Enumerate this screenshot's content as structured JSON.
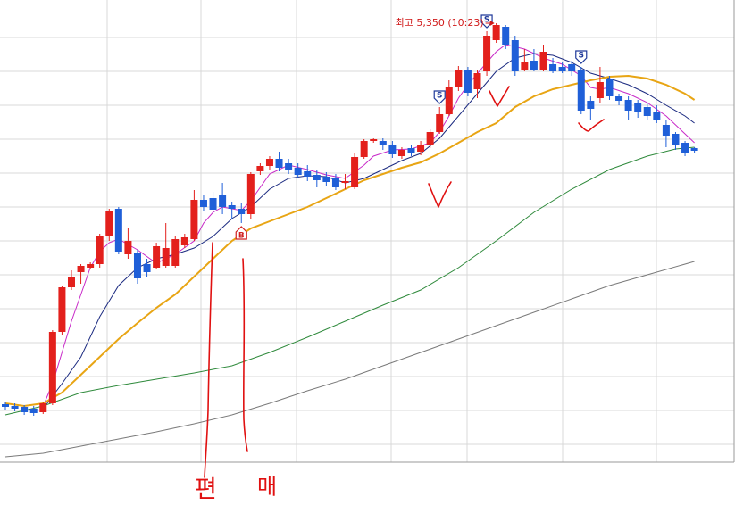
{
  "chart_data": {
    "type": "candlestick",
    "ylim": [
      4858,
      5376
    ],
    "up_color": "#e3201c",
    "down_color": "#1f5fd8",
    "open": [
      4923,
      4921,
      4920,
      4918,
      4914,
      4924,
      5004,
      5054,
      5071,
      5076,
      5080,
      5111,
      5142,
      5091,
      5093,
      5080,
      5076,
      5078,
      5078,
      5101,
      5108,
      5152,
      5154,
      5158,
      5146,
      5142,
      5136,
      5184,
      5190,
      5198,
      5193,
      5188,
      5184,
      5180,
      5178,
      5176,
      5171,
      5166,
      5200,
      5218,
      5218,
      5213,
      5201,
      5210,
      5206,
      5213,
      5228,
      5248,
      5278,
      5298,
      5276,
      5296,
      5331,
      5346,
      5331,
      5298,
      5308,
      5298,
      5304,
      5301,
      5304,
      5298,
      5263,
      5266,
      5288,
      5268,
      5264,
      5261,
      5256,
      5251,
      5236,
      5226,
      5216,
      5210
    ],
    "high": [
      4926,
      4924,
      4922,
      4921,
      4926,
      5006,
      5056,
      5073,
      5080,
      5082,
      5114,
      5142,
      5144,
      5121,
      5096,
      5086,
      5104,
      5126,
      5111,
      5114,
      5163,
      5158,
      5161,
      5171,
      5150,
      5148,
      5183,
      5193,
      5201,
      5206,
      5198,
      5193,
      5191,
      5186,
      5183,
      5181,
      5181,
      5204,
      5220,
      5221,
      5221,
      5218,
      5211,
      5213,
      5218,
      5231,
      5256,
      5286,
      5302,
      5301,
      5298,
      5341,
      5350,
      5348,
      5336,
      5321,
      5321,
      5326,
      5311,
      5306,
      5308,
      5301,
      5268,
      5301,
      5291,
      5271,
      5268,
      5264,
      5261,
      5258,
      5241,
      5228,
      5218,
      5211
    ],
    "low": [
      4916,
      4915,
      4911,
      4910,
      4912,
      4922,
      5001,
      5051,
      5058,
      5074,
      5076,
      5106,
      5091,
      5086,
      5058,
      5066,
      5074,
      5076,
      5076,
      5098,
      5106,
      5140,
      5138,
      5136,
      5131,
      5126,
      5131,
      5180,
      5186,
      5184,
      5181,
      5176,
      5173,
      5166,
      5168,
      5163,
      5164,
      5164,
      5198,
      5216,
      5208,
      5199,
      5198,
      5201,
      5202,
      5210,
      5226,
      5246,
      5274,
      5268,
      5266,
      5291,
      5328,
      5321,
      5291,
      5296,
      5296,
      5296,
      5294,
      5294,
      5291,
      5248,
      5241,
      5261,
      5264,
      5258,
      5241,
      5244,
      5241,
      5238,
      5211,
      5208,
      5201,
      5204
    ],
    "close": [
      4920,
      4918,
      4914,
      4913,
      4924,
      5004,
      5054,
      5066,
      5078,
      5080,
      5111,
      5140,
      5094,
      5106,
      5064,
      5071,
      5100,
      5098,
      5108,
      5110,
      5152,
      5144,
      5141,
      5144,
      5142,
      5136,
      5181,
      5190,
      5198,
      5188,
      5186,
      5180,
      5178,
      5174,
      5172,
      5166,
      5173,
      5200,
      5218,
      5220,
      5213,
      5203,
      5208,
      5204,
      5213,
      5228,
      5248,
      5278,
      5298,
      5272,
      5294,
      5336,
      5348,
      5326,
      5296,
      5306,
      5298,
      5318,
      5296,
      5296,
      5296,
      5252,
      5254,
      5284,
      5268,
      5263,
      5252,
      5251,
      5246,
      5241,
      5224,
      5213,
      5204,
      5207
    ],
    "lines": [
      {
        "color": "#c829c8",
        "x": [
          4,
          5,
          6,
          7,
          8,
          9,
          10,
          11,
          12,
          14,
          16,
          18,
          20,
          21,
          22,
          23,
          25,
          26,
          27,
          28,
          30,
          32,
          34,
          36,
          38,
          39,
          41,
          43,
          45,
          46,
          47,
          48,
          49,
          51,
          52,
          53,
          55,
          57,
          59,
          61,
          62,
          63,
          64,
          66,
          68,
          70,
          72,
          73
        ],
        "values": [
          4921,
          4946,
          4981,
          5016,
          5046,
          5076,
          5094,
          5104,
          5108,
          5096,
          5081,
          5091,
          5106,
          5126,
          5138,
          5144,
          5140,
          5151,
          5166,
          5181,
          5191,
          5186,
          5180,
          5176,
          5191,
          5201,
          5208,
          5209,
          5216,
          5228,
          5246,
          5266,
          5281,
          5306,
          5318,
          5326,
          5321,
          5311,
          5304,
          5291,
          5278,
          5276,
          5278,
          5271,
          5261,
          5246,
          5226,
          5216
        ]
      },
      {
        "color": "#1b2a80",
        "x": [
          4,
          6,
          8,
          10,
          12,
          14,
          16,
          18,
          20,
          22,
          24,
          26,
          28,
          30,
          32,
          34,
          36,
          38,
          40,
          42,
          44,
          46,
          48,
          50,
          52,
          54,
          56,
          58,
          60,
          62,
          64,
          66,
          68,
          70,
          72,
          73
        ],
        "values": [
          4918,
          4946,
          4976,
          5021,
          5056,
          5076,
          5086,
          5091,
          5098,
          5111,
          5131,
          5144,
          5164,
          5176,
          5179,
          5178,
          5171,
          5176,
          5186,
          5196,
          5204,
          5221,
          5246,
          5271,
          5296,
          5311,
          5316,
          5314,
          5306,
          5294,
          5288,
          5281,
          5271,
          5258,
          5246,
          5238
        ]
      },
      {
        "color": "#e8a514",
        "x": [
          0,
          2,
          4,
          6,
          8,
          10,
          12,
          14,
          16,
          18,
          20,
          22,
          24,
          26,
          28,
          30,
          32,
          34,
          36,
          38,
          40,
          42,
          44,
          46,
          48,
          50,
          52,
          54,
          56,
          58,
          60,
          62,
          64,
          66,
          68,
          70,
          72,
          73
        ],
        "values": [
          4924,
          4921,
          4924,
          4936,
          4956,
          4976,
          4996,
          5014,
          5031,
          5046,
          5066,
          5086,
          5106,
          5120,
          5128,
          5136,
          5144,
          5154,
          5164,
          5174,
          5181,
          5188,
          5194,
          5204,
          5216,
          5228,
          5238,
          5256,
          5268,
          5276,
          5281,
          5286,
          5290,
          5291,
          5288,
          5281,
          5271,
          5264
        ]
      },
      {
        "color": "#2f8a3c",
        "x": [
          0,
          4,
          8,
          12,
          16,
          20,
          24,
          28,
          32,
          36,
          40,
          44,
          48,
          52,
          56,
          60,
          64,
          68,
          71,
          73
        ],
        "values": [
          4911,
          4921,
          4936,
          4944,
          4951,
          4958,
          4966,
          4981,
          4998,
          5016,
          5034,
          5051,
          5076,
          5106,
          5138,
          5164,
          5186,
          5201,
          5209,
          5211
        ]
      },
      {
        "color": "#7a7a7a",
        "x": [
          0,
          4,
          8,
          12,
          16,
          20,
          24,
          28,
          32,
          36,
          40,
          44,
          48,
          52,
          56,
          60,
          64,
          68,
          73
        ],
        "values": [
          4864,
          4868,
          4876,
          4884,
          4892,
          4901,
          4911,
          4924,
          4938,
          4951,
          4966,
          4981,
          4996,
          5011,
          5026,
          5041,
          5056,
          5068,
          5083
        ]
      }
    ],
    "markers": [
      {
        "label": "B",
        "x": 25,
        "side": "below"
      },
      {
        "label": "S",
        "x": 46,
        "side": "above"
      },
      {
        "label": "S",
        "x": 51,
        "side": "above"
      },
      {
        "label": "S",
        "x": 61,
        "side": "above"
      }
    ],
    "annotation": {
      "text": "최고 5,350 (10:23)",
      "x": 52
    },
    "handwriting": [
      "편",
      "매"
    ]
  }
}
